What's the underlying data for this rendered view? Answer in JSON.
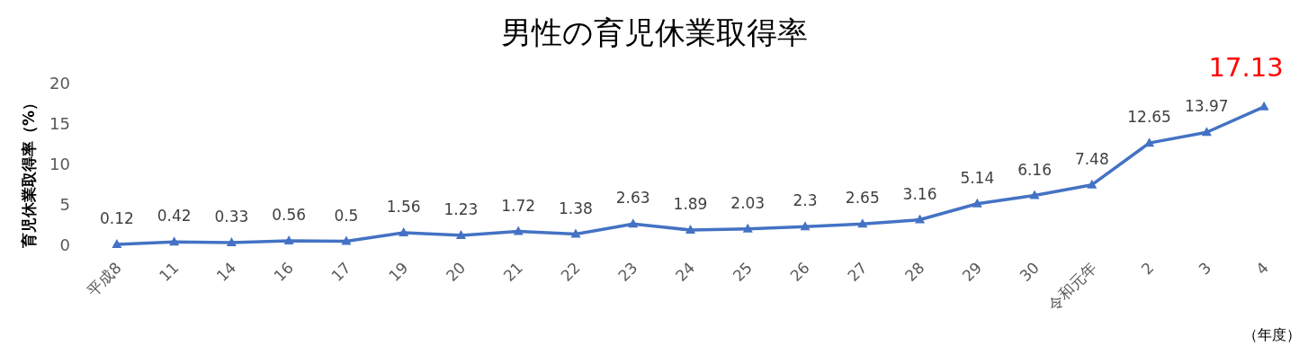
{
  "chart_data": {
    "type": "line",
    "title": "男性の育児休業取得率",
    "ylabel": "育児休業取得率（%）",
    "xlabel": "（年度）",
    "categories": [
      "平成8",
      "11",
      "14",
      "16",
      "17",
      "19",
      "20",
      "21",
      "22",
      "23",
      "24",
      "25",
      "26",
      "27",
      "28",
      "29",
      "30",
      "令和元年",
      "2",
      "3",
      "4"
    ],
    "series": [
      {
        "color": "#4472c4",
        "values": [
          0.12,
          0.42,
          0.33,
          0.56,
          0.5,
          1.56,
          1.23,
          1.72,
          1.38,
          2.63,
          1.89,
          2.03,
          2.3,
          2.65,
          3.16,
          5.14,
          6.16,
          7.48,
          12.65,
          13.97,
          17.13
        ]
      }
    ],
    "ylim": [
      0,
      20
    ],
    "yticks": [
      0,
      5,
      10,
      15,
      20
    ],
    "grid": false,
    "marker": "triangle",
    "line_style": "solid",
    "data_labels": true
  }
}
